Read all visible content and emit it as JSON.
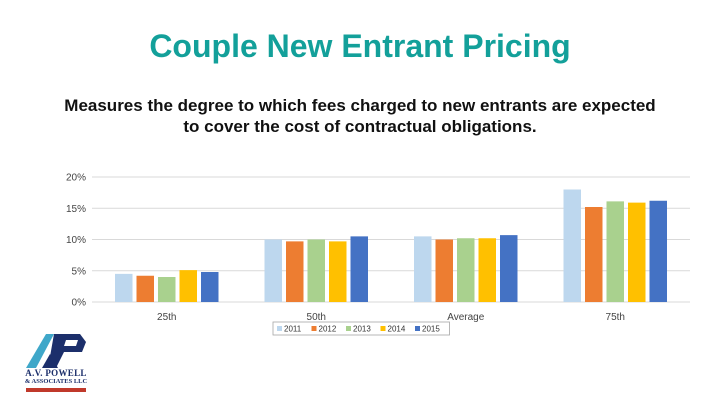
{
  "slide": {
    "title": "Couple New Entrant Pricing",
    "subtitle": "Measures the degree to which fees charged to new entrants are expected to cover the cost of contractual obligations."
  },
  "logo": {
    "text_line1": "A.V. POWELL",
    "text_line2": "& ASSOCIATES LLC",
    "accent_colors": [
      "#3fa7c9",
      "#1c2f6b",
      "#c0392b"
    ]
  },
  "chart_data": {
    "type": "bar",
    "categories": [
      "25th",
      "50th",
      "Average",
      "75th"
    ],
    "series": [
      {
        "name": "2011",
        "color": "#bdd7ee",
        "values": [
          4.5,
          10.0,
          10.5,
          18.0
        ]
      },
      {
        "name": "2012",
        "color": "#ed7d31",
        "values": [
          4.2,
          9.7,
          10.0,
          15.2
        ]
      },
      {
        "name": "2013",
        "color": "#a9d18e",
        "values": [
          4.0,
          10.0,
          10.2,
          16.1
        ]
      },
      {
        "name": "2014",
        "color": "#ffc000",
        "values": [
          5.1,
          9.7,
          10.2,
          15.9
        ]
      },
      {
        "name": "2015",
        "color": "#4472c4",
        "values": [
          4.8,
          10.5,
          10.7,
          16.2
        ]
      }
    ],
    "yticks": [
      "0%",
      "5%",
      "10%",
      "15%",
      "20%"
    ],
    "ylim": [
      0,
      20
    ],
    "grid": true,
    "legend_position": "bottom"
  }
}
